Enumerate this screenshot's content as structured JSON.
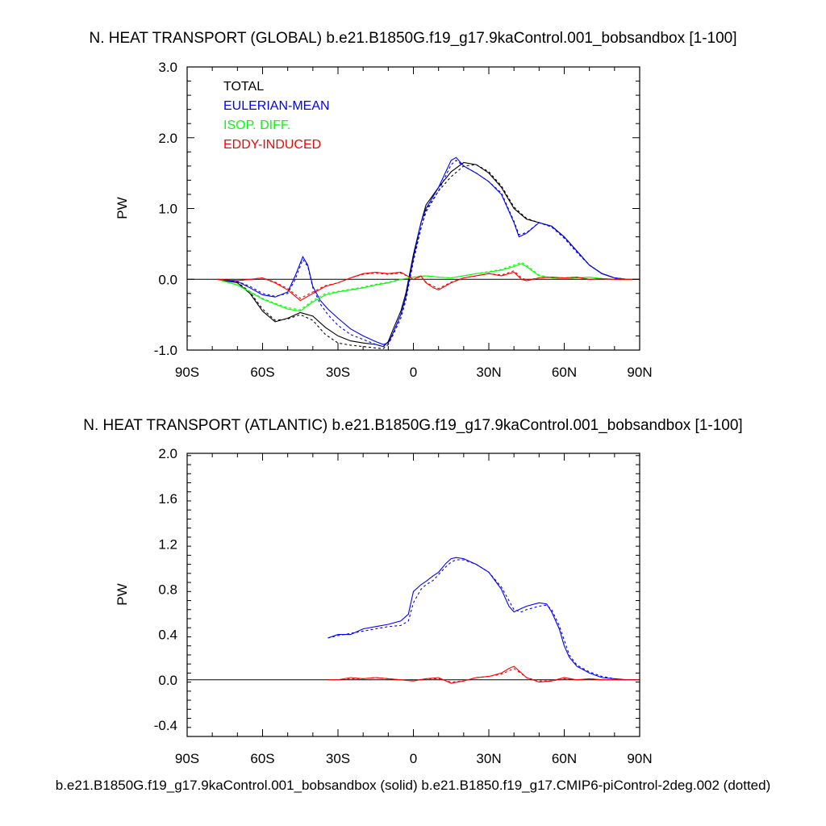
{
  "chart_data": [
    {
      "type": "line",
      "title": "N. HEAT TRANSPORT (GLOBAL) b.e21.B1850G.f19_g17.9kaControl.001_bobsandbox [1-100]",
      "ylabel": "PW",
      "xlim": [
        -90,
        90
      ],
      "ylim": [
        -1.0,
        3.0
      ],
      "yticks": [
        "-1.0",
        "0.0",
        "1.0",
        "2.0",
        "3.0"
      ],
      "xticks": [
        "90S",
        "60S",
        "30S",
        "0",
        "30N",
        "60N",
        "90N"
      ],
      "legend_position": "top-left",
      "legend": [
        {
          "label": "TOTAL",
          "color": "#000000"
        },
        {
          "label": "EULERIAN-MEAN",
          "color": "#0000ff"
        },
        {
          "label": "ISOP. DIFF.",
          "color": "#00ff00"
        },
        {
          "label": "EDDY-INDUCED",
          "color": "#ff0000"
        }
      ],
      "series": [
        {
          "name": "TOTAL",
          "color": "#000000",
          "style": "solid",
          "x": [
            -78,
            -70,
            -65,
            -60,
            -55,
            -50,
            -45,
            -40,
            -35,
            -30,
            -25,
            -20,
            -15,
            -12,
            -10,
            -8,
            -5,
            -3,
            0,
            3,
            5,
            10,
            15,
            20,
            25,
            30,
            35,
            40,
            45,
            50,
            55,
            60,
            65,
            70,
            75,
            80,
            85,
            90
          ],
          "y": [
            0,
            -0.05,
            -0.2,
            -0.45,
            -0.6,
            -0.55,
            -0.47,
            -0.52,
            -0.68,
            -0.8,
            -0.87,
            -0.9,
            -0.92,
            -0.95,
            -0.88,
            -0.7,
            -0.45,
            -0.2,
            0.35,
            0.8,
            1.05,
            1.3,
            1.52,
            1.65,
            1.62,
            1.5,
            1.3,
            1.0,
            0.85,
            0.8,
            0.75,
            0.6,
            0.4,
            0.2,
            0.08,
            0.02,
            0,
            0
          ]
        },
        {
          "name": "TOTAL (dotted)",
          "color": "#000000",
          "style": "dotted",
          "x": [
            -78,
            -70,
            -65,
            -60,
            -55,
            -50,
            -45,
            -40,
            -35,
            -30,
            -25,
            -20,
            -15,
            -12,
            -10,
            -8,
            -5,
            -3,
            0,
            3,
            5,
            10,
            15,
            20,
            25,
            30,
            35,
            40,
            45,
            50,
            55,
            60,
            65,
            70,
            75,
            80,
            85,
            90
          ],
          "y": [
            0,
            -0.04,
            -0.18,
            -0.42,
            -0.58,
            -0.56,
            -0.5,
            -0.58,
            -0.78,
            -0.9,
            -0.93,
            -0.95,
            -0.97,
            -0.98,
            -0.92,
            -0.75,
            -0.5,
            -0.25,
            0.3,
            0.72,
            0.98,
            1.25,
            1.45,
            1.6,
            1.62,
            1.52,
            1.32,
            1.02,
            0.86,
            0.8,
            0.74,
            0.6,
            0.4,
            0.2,
            0.08,
            0.02,
            0,
            0
          ]
        },
        {
          "name": "EULERIAN-MEAN",
          "color": "#0000ff",
          "style": "solid",
          "x": [
            -78,
            -70,
            -65,
            -60,
            -55,
            -50,
            -47,
            -44,
            -42,
            -40,
            -37,
            -34,
            -30,
            -25,
            -20,
            -15,
            -12,
            -10,
            -8,
            -5,
            -3,
            0,
            3,
            5,
            10,
            15,
            17,
            20,
            25,
            30,
            35,
            40,
            42,
            45,
            50,
            55,
            60,
            65,
            70,
            75,
            80,
            85,
            90
          ],
          "y": [
            0,
            -0.03,
            -0.12,
            -0.22,
            -0.25,
            -0.18,
            0.05,
            0.32,
            0.2,
            -0.1,
            -0.3,
            -0.42,
            -0.55,
            -0.7,
            -0.8,
            -0.88,
            -0.92,
            -0.9,
            -0.75,
            -0.5,
            -0.25,
            0.3,
            0.8,
            1.0,
            1.3,
            1.68,
            1.72,
            1.6,
            1.5,
            1.38,
            1.2,
            0.8,
            0.6,
            0.65,
            0.8,
            0.75,
            0.6,
            0.4,
            0.2,
            0.08,
            0.02,
            0,
            0
          ]
        },
        {
          "name": "EULERIAN-MEAN (dotted)",
          "color": "#0000ff",
          "style": "dotted",
          "x": [
            -78,
            -70,
            -65,
            -60,
            -55,
            -50,
            -47,
            -44,
            -42,
            -40,
            -37,
            -34,
            -30,
            -25,
            -20,
            -15,
            -12,
            -10,
            -8,
            -5,
            -3,
            0,
            3,
            5,
            10,
            15,
            17,
            20,
            25,
            30,
            35,
            40,
            42,
            45,
            50,
            55,
            60,
            65,
            70,
            75,
            80,
            85,
            90
          ],
          "y": [
            0,
            -0.03,
            -0.1,
            -0.2,
            -0.24,
            -0.2,
            0,
            0.28,
            0.18,
            -0.12,
            -0.35,
            -0.5,
            -0.65,
            -0.78,
            -0.85,
            -0.92,
            -0.95,
            -0.92,
            -0.78,
            -0.55,
            -0.3,
            0.25,
            0.72,
            0.95,
            1.25,
            1.62,
            1.68,
            1.6,
            1.5,
            1.38,
            1.22,
            0.82,
            0.63,
            0.66,
            0.8,
            0.74,
            0.58,
            0.38,
            0.2,
            0.08,
            0.02,
            0,
            0
          ]
        },
        {
          "name": "ISOP. DIFF.",
          "color": "#00ff00",
          "style": "solid",
          "x": [
            -78,
            -70,
            -65,
            -60,
            -55,
            -50,
            -45,
            -40,
            -35,
            -30,
            -25,
            -20,
            -15,
            -10,
            -5,
            0,
            5,
            10,
            15,
            20,
            25,
            30,
            35,
            40,
            43,
            45,
            50,
            55,
            60,
            65,
            70,
            75,
            80,
            85,
            90
          ],
          "y": [
            0,
            -0.08,
            -0.18,
            -0.28,
            -0.35,
            -0.42,
            -0.45,
            -0.32,
            -0.22,
            -0.18,
            -0.15,
            -0.12,
            -0.08,
            -0.05,
            0,
            0.03,
            0.05,
            0.03,
            0.02,
            0.05,
            0.08,
            0.1,
            0.13,
            0.18,
            0.22,
            0.18,
            0.05,
            0.02,
            0.01,
            0.02,
            0.03,
            0.01,
            0,
            0,
            0
          ]
        },
        {
          "name": "ISOP. DIFF. (dotted)",
          "color": "#00ff00",
          "style": "dotted",
          "x": [
            -78,
            -70,
            -65,
            -60,
            -55,
            -50,
            -45,
            -40,
            -35,
            -30,
            -25,
            -20,
            -15,
            -10,
            -5,
            0,
            5,
            10,
            15,
            20,
            25,
            30,
            35,
            40,
            43,
            45,
            50,
            55,
            60,
            65,
            70,
            75,
            80,
            85,
            90
          ],
          "y": [
            0,
            -0.08,
            -0.17,
            -0.27,
            -0.34,
            -0.4,
            -0.43,
            -0.3,
            -0.2,
            -0.17,
            -0.14,
            -0.11,
            -0.07,
            -0.04,
            0,
            0.03,
            0.05,
            0.03,
            0.02,
            0.05,
            0.08,
            0.11,
            0.14,
            0.2,
            0.24,
            0.2,
            0.06,
            0.02,
            0.01,
            0.02,
            0.03,
            0.01,
            0,
            0,
            0
          ]
        },
        {
          "name": "EDDY-INDUCED",
          "color": "#ff0000",
          "style": "solid",
          "x": [
            -78,
            -70,
            -65,
            -60,
            -55,
            -50,
            -45,
            -40,
            -35,
            -30,
            -25,
            -20,
            -15,
            -10,
            -5,
            0,
            3,
            5,
            8,
            10,
            15,
            20,
            25,
            30,
            35,
            40,
            43,
            45,
            50,
            55,
            60,
            65,
            70,
            75,
            80,
            85,
            90
          ],
          "y": [
            0,
            -0.02,
            0,
            0.02,
            -0.05,
            -0.15,
            -0.3,
            -0.2,
            -0.1,
            -0.05,
            0.02,
            0.08,
            0.1,
            0.08,
            0.1,
            0,
            0.05,
            -0.05,
            -0.12,
            -0.15,
            -0.05,
            0.02,
            0.05,
            0.08,
            0.05,
            0.1,
            0,
            -0.02,
            0.02,
            0.03,
            0.02,
            0.03,
            0,
            0.01,
            0,
            0,
            0
          ]
        },
        {
          "name": "EDDY-INDUCED (dotted)",
          "color": "#ff0000",
          "style": "dotted",
          "x": [
            -78,
            -70,
            -65,
            -60,
            -55,
            -50,
            -45,
            -40,
            -35,
            -30,
            -25,
            -20,
            -15,
            -10,
            -5,
            0,
            3,
            5,
            8,
            10,
            15,
            20,
            25,
            30,
            35,
            40,
            43,
            45,
            50,
            55,
            60,
            65,
            70,
            75,
            80,
            85,
            90
          ],
          "y": [
            0,
            -0.02,
            0,
            0.02,
            -0.04,
            -0.13,
            -0.27,
            -0.18,
            -0.09,
            -0.05,
            0.02,
            0.07,
            0.09,
            0.07,
            0.09,
            0,
            0.04,
            -0.04,
            -0.1,
            -0.13,
            -0.04,
            0.02,
            0.05,
            0.08,
            0.06,
            0.12,
            0.02,
            -0.01,
            0.02,
            0.03,
            0.02,
            0.03,
            0,
            0.01,
            0,
            0,
            0
          ]
        }
      ]
    },
    {
      "type": "line",
      "title": "N. HEAT TRANSPORT (ATLANTIC) b.e21.B1850G.f19_g17.9kaControl.001_bobsandbox [1-100]",
      "ylabel": "PW",
      "xlim": [
        -90,
        90
      ],
      "ylim": [
        -0.5,
        2.0
      ],
      "yticks": [
        "-0.4",
        "0.0",
        "0.4",
        "0.8",
        "1.2",
        "1.6",
        "2.0"
      ],
      "xticks": [
        "90S",
        "60S",
        "30S",
        "0",
        "30N",
        "60N",
        "90N"
      ],
      "footer": "b.e21.B1850G.f19_g17.9kaControl.001_bobsandbox (solid) b.e21.B1850.f19_g17.CMIP6-piControl-2deg.002 (dotted)",
      "series": [
        {
          "name": "Blue solid",
          "color": "#0000ff",
          "style": "solid",
          "x": [
            -34,
            -30,
            -25,
            -20,
            -15,
            -10,
            -5,
            -2,
            0,
            3,
            5,
            8,
            10,
            13,
            15,
            17,
            20,
            25,
            30,
            35,
            38,
            40,
            43,
            45,
            50,
            53,
            55,
            58,
            60,
            62,
            65,
            70,
            75,
            80,
            85,
            90
          ],
          "y": [
            0.37,
            0.4,
            0.4,
            0.45,
            0.47,
            0.49,
            0.52,
            0.58,
            0.78,
            0.84,
            0.87,
            0.92,
            0.95,
            1.03,
            1.07,
            1.08,
            1.07,
            1.02,
            0.95,
            0.8,
            0.65,
            0.6,
            0.63,
            0.65,
            0.68,
            0.67,
            0.6,
            0.45,
            0.3,
            0.2,
            0.12,
            0.06,
            0.02,
            0.01,
            0,
            0
          ]
        },
        {
          "name": "Blue dotted",
          "color": "#0000ff",
          "style": "dotted",
          "x": [
            -34,
            -30,
            -25,
            -20,
            -15,
            -10,
            -5,
            -2,
            0,
            3,
            5,
            8,
            10,
            13,
            15,
            17,
            20,
            25,
            30,
            35,
            38,
            40,
            43,
            45,
            50,
            53,
            55,
            58,
            60,
            62,
            65,
            70,
            75,
            80,
            85,
            90
          ],
          "y": [
            0.37,
            0.39,
            0.41,
            0.43,
            0.45,
            0.47,
            0.48,
            0.52,
            0.68,
            0.8,
            0.84,
            0.88,
            0.93,
            1.0,
            1.04,
            1.06,
            1.06,
            1.02,
            0.95,
            0.82,
            0.7,
            0.62,
            0.6,
            0.62,
            0.65,
            0.66,
            0.62,
            0.48,
            0.35,
            0.22,
            0.13,
            0.07,
            0.03,
            0.01,
            0,
            0
          ]
        },
        {
          "name": "Red solid",
          "color": "#ff0000",
          "style": "solid",
          "x": [
            -34,
            -30,
            -25,
            -20,
            -15,
            -10,
            -5,
            0,
            5,
            10,
            15,
            20,
            25,
            30,
            35,
            38,
            40,
            42,
            45,
            50,
            55,
            60,
            65,
            70,
            75,
            80,
            85,
            90
          ],
          "y": [
            0,
            0,
            0.02,
            0.01,
            0.02,
            0.01,
            0,
            -0.01,
            0.01,
            0.02,
            -0.03,
            -0.01,
            0.02,
            0.03,
            0.06,
            0.1,
            0.12,
            0.08,
            0.02,
            -0.02,
            -0.01,
            0.02,
            0,
            0.01,
            0,
            0,
            0,
            0
          ]
        },
        {
          "name": "Red dotted",
          "color": "#ff0000",
          "style": "dotted",
          "x": [
            -34,
            -30,
            -25,
            -20,
            -15,
            -10,
            -5,
            0,
            5,
            10,
            15,
            20,
            25,
            30,
            35,
            38,
            40,
            42,
            45,
            50,
            55,
            60,
            65,
            70,
            75,
            80,
            85,
            90
          ],
          "y": [
            0,
            0,
            0.01,
            0.01,
            0.02,
            0.01,
            0,
            -0.01,
            0.01,
            0.01,
            -0.02,
            -0.01,
            0.02,
            0.03,
            0.05,
            0.08,
            0.1,
            0.07,
            0.02,
            -0.01,
            -0.01,
            0.01,
            0,
            0.01,
            0,
            0,
            0,
            0
          ]
        }
      ]
    }
  ]
}
